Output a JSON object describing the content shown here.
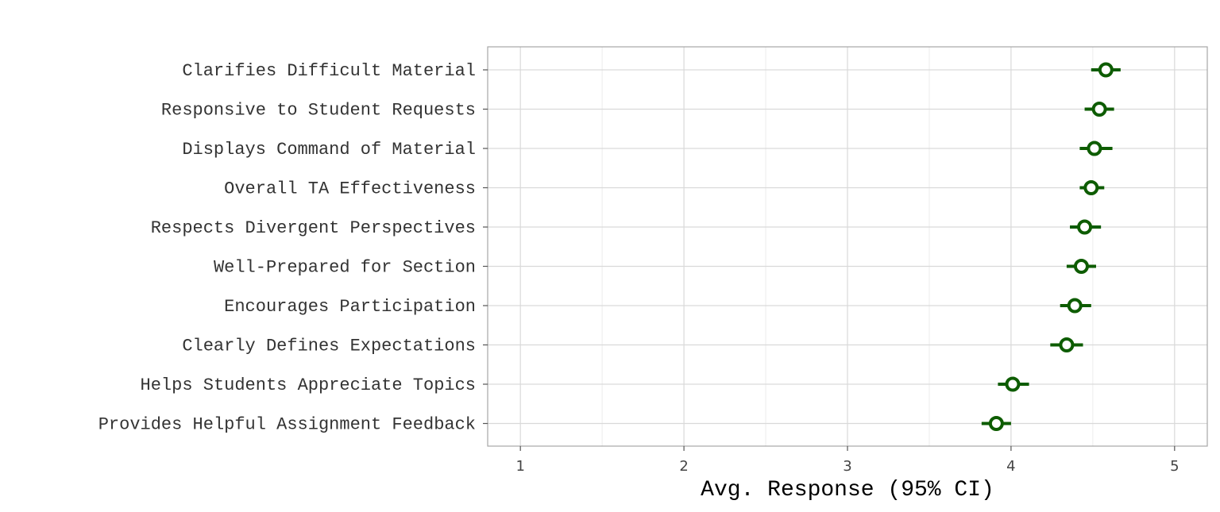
{
  "chart_data": {
    "type": "scatter",
    "title": "",
    "xlabel": "Avg. Response (95% CI)",
    "ylabel": "",
    "xlim": [
      0.8,
      5.2
    ],
    "xticks": [
      1,
      2,
      3,
      4,
      5
    ],
    "grid": true,
    "colors": {
      "point": "#0d5c00",
      "grid_major": "#d9d9d9",
      "grid_minor": "#ececec",
      "panel_border": "#a6a6a6"
    },
    "categories": [
      "Clarifies Difficult Material",
      "Responsive to Student Requests",
      "Displays Command of Material",
      "Overall TA Effectiveness",
      "Respects Divergent Perspectives",
      "Well-Prepared for Section",
      "Encourages Participation",
      "Clearly Defines Expectations",
      "Helps Students Appreciate Topics",
      "Provides Helpful Assignment Feedback"
    ],
    "series": [
      {
        "values": [
          4.58,
          4.54,
          4.51,
          4.49,
          4.45,
          4.43,
          4.39,
          4.34,
          4.01,
          3.91
        ],
        "ci_low": [
          4.49,
          4.45,
          4.42,
          4.42,
          4.36,
          4.34,
          4.3,
          4.24,
          3.92,
          3.82
        ],
        "ci_high": [
          4.67,
          4.63,
          4.62,
          4.57,
          4.55,
          4.52,
          4.49,
          4.44,
          4.11,
          4.0
        ]
      }
    ]
  }
}
